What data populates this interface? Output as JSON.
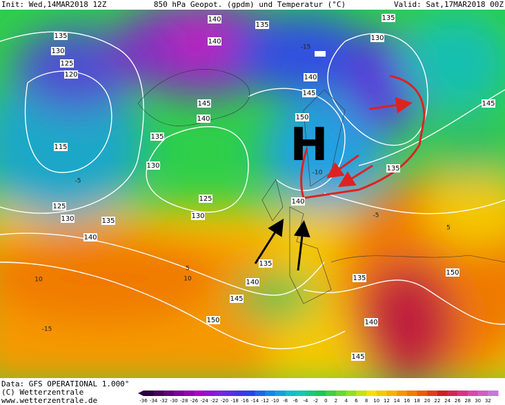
{
  "header": {
    "init": "Init: Wed,14MAR2018 12Z",
    "title": "850 hPa Geopot. (gpdm) und Temperatur (°C)",
    "valid": "Valid: Sat,17MAR2018 00Z"
  },
  "annotation": "H",
  "contour_labels": [
    135,
    130,
    125,
    120,
    115,
    140,
    135,
    140,
    130,
    135,
    140,
    145,
    150,
    145,
    140,
    135,
    130,
    125,
    130,
    125,
    130,
    135,
    140,
    135,
    140,
    145,
    150,
    140,
    135,
    145,
    135,
    140,
    145,
    150
  ],
  "temperature_labels": [
    "-15",
    "-5",
    "-5",
    "5",
    "10",
    "-15",
    "10",
    "-10",
    "5"
  ],
  "footer": {
    "source": "Data: GFS OPERATIONAL 1.000°",
    "copyright": "(C) Wetterzentrale",
    "url": "www.wetterzentrale.de"
  },
  "colorbar": {
    "ticks": [
      -36,
      -34,
      -32,
      -30,
      -28,
      -26,
      -24,
      -22,
      -20,
      -18,
      -16,
      -14,
      -12,
      -10,
      -8,
      -6,
      -4,
      -2,
      0,
      2,
      4,
      6,
      8,
      10,
      12,
      14,
      16,
      18,
      20,
      22,
      24,
      26,
      28,
      30,
      32
    ]
  }
}
